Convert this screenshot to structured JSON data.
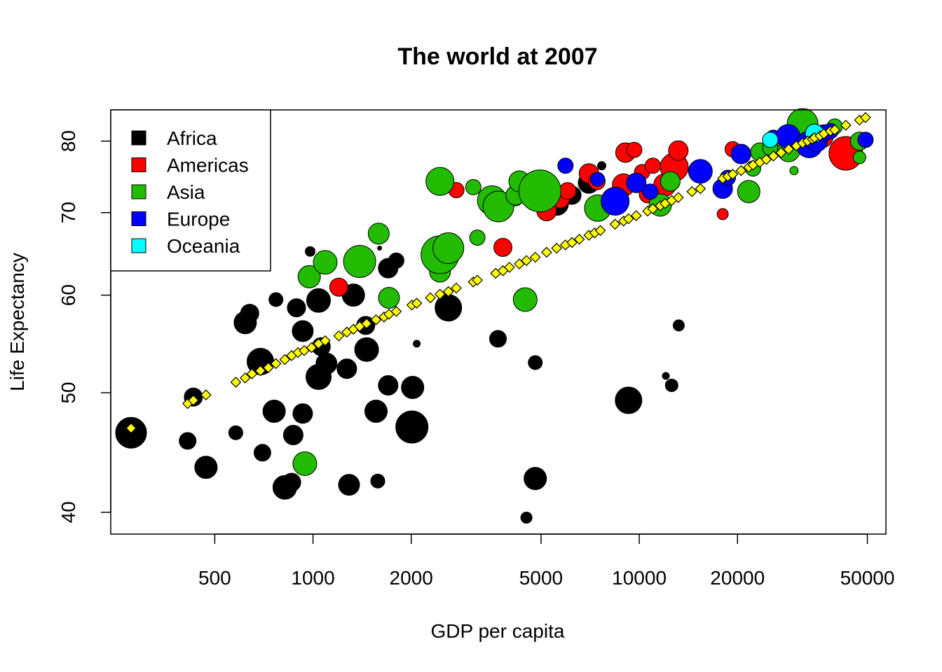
{
  "chart_data": {
    "type": "scatter",
    "title": "The world at 2007",
    "xlabel": "GDP per capita",
    "ylabel": "Life Expectancy",
    "x_scale": "log",
    "y_scale": "log",
    "xlim": [
      240,
      57000
    ],
    "ylim": [
      38.4,
      84.8
    ],
    "x_ticks": [
      500,
      1000,
      2000,
      5000,
      10000,
      20000,
      50000
    ],
    "y_ticks": [
      40,
      50,
      60,
      70,
      80
    ],
    "grid": false,
    "legend": {
      "position": "top-left",
      "entries": [
        {
          "label": "Africa",
          "color": "#000000"
        },
        {
          "label": "Americas",
          "color": "#ff0000"
        },
        {
          "label": "Asia",
          "color": "#22bb00"
        },
        {
          "label": "Europe",
          "color": "#0000ff"
        },
        {
          "label": "Oceania",
          "color": "#00ffff"
        }
      ]
    },
    "series": [
      {
        "name": "Africa",
        "color": "#000000",
        "points": [
          {
            "x": 277,
            "y": 46.4,
            "r": 22
          },
          {
            "x": 413,
            "y": 45.7,
            "r": 12
          },
          {
            "x": 430,
            "y": 49.6,
            "r": 13
          },
          {
            "x": 470,
            "y": 43.5,
            "r": 16
          },
          {
            "x": 580,
            "y": 46.4,
            "r": 10
          },
          {
            "x": 620,
            "y": 57.0,
            "r": 16
          },
          {
            "x": 640,
            "y": 58.0,
            "r": 13
          },
          {
            "x": 690,
            "y": 53.0,
            "r": 19
          },
          {
            "x": 700,
            "y": 44.7,
            "r": 12
          },
          {
            "x": 760,
            "y": 48.3,
            "r": 16
          },
          {
            "x": 770,
            "y": 59.5,
            "r": 10
          },
          {
            "x": 820,
            "y": 41.9,
            "r": 17
          },
          {
            "x": 860,
            "y": 42.3,
            "r": 13
          },
          {
            "x": 870,
            "y": 46.2,
            "r": 14
          },
          {
            "x": 890,
            "y": 58.6,
            "r": 13
          },
          {
            "x": 930,
            "y": 56.1,
            "r": 15
          },
          {
            "x": 930,
            "y": 48.1,
            "r": 14
          },
          {
            "x": 980,
            "y": 65.1,
            "r": 7
          },
          {
            "x": 1040,
            "y": 59.4,
            "r": 17
          },
          {
            "x": 1040,
            "y": 51.5,
            "r": 18
          },
          {
            "x": 1060,
            "y": 54.5,
            "r": 13
          },
          {
            "x": 1100,
            "y": 52.8,
            "r": 15
          },
          {
            "x": 1270,
            "y": 52.3,
            "r": 14
          },
          {
            "x": 1290,
            "y": 42.1,
            "r": 15
          },
          {
            "x": 1330,
            "y": 60.0,
            "r": 16
          },
          {
            "x": 1450,
            "y": 56.7,
            "r": 13
          },
          {
            "x": 1460,
            "y": 54.2,
            "r": 17
          },
          {
            "x": 1580,
            "y": 42.4,
            "r": 10
          },
          {
            "x": 1560,
            "y": 48.3,
            "r": 16
          },
          {
            "x": 1600,
            "y": 65.5,
            "r": 3
          },
          {
            "x": 1700,
            "y": 50.7,
            "r": 14
          },
          {
            "x": 1700,
            "y": 63.1,
            "r": 14
          },
          {
            "x": 1800,
            "y": 64.0,
            "r": 11
          },
          {
            "x": 2020,
            "y": 50.5,
            "r": 16
          },
          {
            "x": 2010,
            "y": 46.9,
            "r": 23
          },
          {
            "x": 2080,
            "y": 54.8,
            "r": 5
          },
          {
            "x": 2600,
            "y": 58.6,
            "r": 19
          },
          {
            "x": 3630,
            "y": 71.0,
            "r": 15
          },
          {
            "x": 3690,
            "y": 55.3,
            "r": 12
          },
          {
            "x": 4510,
            "y": 39.6,
            "r": 8
          },
          {
            "x": 4800,
            "y": 42.6,
            "r": 16
          },
          {
            "x": 4800,
            "y": 52.9,
            "r": 10
          },
          {
            "x": 5580,
            "y": 71.2,
            "r": 17
          },
          {
            "x": 6220,
            "y": 72.3,
            "r": 13
          },
          {
            "x": 7000,
            "y": 74.0,
            "r": 15
          },
          {
            "x": 7670,
            "y": 76.4,
            "r": 6
          },
          {
            "x": 9270,
            "y": 49.3,
            "r": 19
          },
          {
            "x": 12060,
            "y": 51.6,
            "r": 5
          },
          {
            "x": 12570,
            "y": 50.7,
            "r": 9
          },
          {
            "x": 13210,
            "y": 56.7,
            "r": 8
          }
        ]
      },
      {
        "name": "Americas",
        "color": "#ff0000",
        "points": [
          {
            "x": 1200,
            "y": 60.9,
            "r": 13
          },
          {
            "x": 2750,
            "y": 73.0,
            "r": 11
          },
          {
            "x": 3820,
            "y": 65.6,
            "r": 13
          },
          {
            "x": 4170,
            "y": 72.0,
            "r": 12
          },
          {
            "x": 5200,
            "y": 70.2,
            "r": 14
          },
          {
            "x": 5730,
            "y": 71.8,
            "r": 13
          },
          {
            "x": 6030,
            "y": 72.9,
            "r": 12
          },
          {
            "x": 7010,
            "y": 75.3,
            "r": 14
          },
          {
            "x": 7410,
            "y": 74.2,
            "r": 12
          },
          {
            "x": 8950,
            "y": 73.7,
            "r": 16
          },
          {
            "x": 9070,
            "y": 78.3,
            "r": 14
          },
          {
            "x": 9650,
            "y": 78.7,
            "r": 11
          },
          {
            "x": 10200,
            "y": 75.5,
            "r": 11
          },
          {
            "x": 10610,
            "y": 72.4,
            "r": 12
          },
          {
            "x": 11000,
            "y": 76.4,
            "r": 11
          },
          {
            "x": 11980,
            "y": 73.7,
            "r": 16
          },
          {
            "x": 12800,
            "y": 76.2,
            "r": 20
          },
          {
            "x": 13170,
            "y": 78.6,
            "r": 14
          },
          {
            "x": 18010,
            "y": 69.8,
            "r": 8
          },
          {
            "x": 19330,
            "y": 78.8,
            "r": 11
          },
          {
            "x": 36320,
            "y": 80.7,
            "r": 16
          },
          {
            "x": 42950,
            "y": 78.2,
            "r": 24
          }
        ]
      },
      {
        "name": "Asia",
        "color": "#22bb00",
        "points": [
          {
            "x": 944,
            "y": 43.8,
            "r": 17
          },
          {
            "x": 974,
            "y": 62.1,
            "r": 16
          },
          {
            "x": 1090,
            "y": 63.8,
            "r": 17
          },
          {
            "x": 1390,
            "y": 63.9,
            "r": 23
          },
          {
            "x": 1590,
            "y": 67.3,
            "r": 15
          },
          {
            "x": 1710,
            "y": 59.7,
            "r": 15
          },
          {
            "x": 2450,
            "y": 74.2,
            "r": 20
          },
          {
            "x": 2450,
            "y": 62.7,
            "r": 15
          },
          {
            "x": 2450,
            "y": 64.7,
            "r": 27
          },
          {
            "x": 2600,
            "y": 65.5,
            "r": 22
          },
          {
            "x": 3100,
            "y": 73.4,
            "r": 11
          },
          {
            "x": 3190,
            "y": 66.8,
            "r": 11
          },
          {
            "x": 3540,
            "y": 71.6,
            "r": 21
          },
          {
            "x": 3700,
            "y": 70.8,
            "r": 22
          },
          {
            "x": 4180,
            "y": 72.3,
            "r": 14
          },
          {
            "x": 4290,
            "y": 74.2,
            "r": 15
          },
          {
            "x": 4470,
            "y": 59.5,
            "r": 17
          },
          {
            "x": 4960,
            "y": 72.9,
            "r": 30
          },
          {
            "x": 7460,
            "y": 70.6,
            "r": 19
          },
          {
            "x": 11600,
            "y": 71.0,
            "r": 16
          },
          {
            "x": 12450,
            "y": 74.2,
            "r": 14
          },
          {
            "x": 21650,
            "y": 72.8,
            "r": 16
          },
          {
            "x": 22320,
            "y": 76.0,
            "r": 11
          },
          {
            "x": 23400,
            "y": 78.4,
            "r": 13
          },
          {
            "x": 25190,
            "y": 79.0,
            "r": 11
          },
          {
            "x": 28690,
            "y": 78.6,
            "r": 16
          },
          {
            "x": 29800,
            "y": 75.7,
            "r": 6
          },
          {
            "x": 31660,
            "y": 82.6,
            "r": 22
          },
          {
            "x": 39720,
            "y": 82.2,
            "r": 11
          },
          {
            "x": 47310,
            "y": 80.0,
            "r": 13
          },
          {
            "x": 47300,
            "y": 77.6,
            "r": 9
          }
        ]
      },
      {
        "name": "Europe",
        "color": "#0000ff",
        "points": [
          {
            "x": 5940,
            "y": 76.4,
            "r": 11
          },
          {
            "x": 7450,
            "y": 74.5,
            "r": 10
          },
          {
            "x": 8430,
            "y": 71.5,
            "r": 20
          },
          {
            "x": 9790,
            "y": 74.0,
            "r": 14
          },
          {
            "x": 10810,
            "y": 72.8,
            "r": 11
          },
          {
            "x": 15390,
            "y": 75.6,
            "r": 17
          },
          {
            "x": 18010,
            "y": 73.2,
            "r": 14
          },
          {
            "x": 18680,
            "y": 74.7,
            "r": 11
          },
          {
            "x": 20510,
            "y": 78.1,
            "r": 14
          },
          {
            "x": 25770,
            "y": 80.5,
            "r": 11
          },
          {
            "x": 28570,
            "y": 80.7,
            "r": 17
          },
          {
            "x": 33200,
            "y": 79.5,
            "r": 19
          },
          {
            "x": 35000,
            "y": 80.0,
            "r": 15
          },
          {
            "x": 36800,
            "y": 81.2,
            "r": 12
          },
          {
            "x": 38500,
            "y": 81.5,
            "r": 11
          },
          {
            "x": 49360,
            "y": 80.2,
            "r": 11
          }
        ]
      },
      {
        "name": "Oceania",
        "color": "#00ffff",
        "points": [
          {
            "x": 25190,
            "y": 80.2,
            "r": 11
          },
          {
            "x": 34440,
            "y": 81.2,
            "r": 13
          }
        ]
      }
    ],
    "fit": {
      "name": "",
      "color": "#ffff00",
      "marker": "diamond",
      "points": [
        {
          "x": 277,
          "y": 46.8
        },
        {
          "x": 413,
          "y": 49.0
        },
        {
          "x": 430,
          "y": 49.3
        },
        {
          "x": 470,
          "y": 49.8
        },
        {
          "x": 580,
          "y": 51.0
        },
        {
          "x": 620,
          "y": 51.4
        },
        {
          "x": 650,
          "y": 51.8
        },
        {
          "x": 690,
          "y": 52.1
        },
        {
          "x": 730,
          "y": 52.4
        },
        {
          "x": 770,
          "y": 52.8
        },
        {
          "x": 820,
          "y": 53.2
        },
        {
          "x": 860,
          "y": 53.6
        },
        {
          "x": 900,
          "y": 53.9
        },
        {
          "x": 940,
          "y": 54.1
        },
        {
          "x": 990,
          "y": 54.4
        },
        {
          "x": 1040,
          "y": 54.8
        },
        {
          "x": 1090,
          "y": 55.1
        },
        {
          "x": 1200,
          "y": 55.6
        },
        {
          "x": 1270,
          "y": 56.0
        },
        {
          "x": 1330,
          "y": 56.3
        },
        {
          "x": 1390,
          "y": 56.6
        },
        {
          "x": 1460,
          "y": 56.9
        },
        {
          "x": 1560,
          "y": 57.3
        },
        {
          "x": 1650,
          "y": 57.6
        },
        {
          "x": 1710,
          "y": 57.9
        },
        {
          "x": 1800,
          "y": 58.2
        },
        {
          "x": 2010,
          "y": 58.9
        },
        {
          "x": 2080,
          "y": 59.1
        },
        {
          "x": 2290,
          "y": 59.7
        },
        {
          "x": 2450,
          "y": 60.1
        },
        {
          "x": 2600,
          "y": 60.4
        },
        {
          "x": 2750,
          "y": 60.8
        },
        {
          "x": 3100,
          "y": 61.5
        },
        {
          "x": 3190,
          "y": 61.7
        },
        {
          "x": 3630,
          "y": 62.5
        },
        {
          "x": 3820,
          "y": 62.8
        },
        {
          "x": 4000,
          "y": 63.2
        },
        {
          "x": 4290,
          "y": 63.6
        },
        {
          "x": 4510,
          "y": 64.0
        },
        {
          "x": 4800,
          "y": 64.4
        },
        {
          "x": 5200,
          "y": 65.0
        },
        {
          "x": 5580,
          "y": 65.5
        },
        {
          "x": 5940,
          "y": 65.9
        },
        {
          "x": 6220,
          "y": 66.2
        },
        {
          "x": 6550,
          "y": 66.6
        },
        {
          "x": 7010,
          "y": 67.1
        },
        {
          "x": 7300,
          "y": 67.4
        },
        {
          "x": 7600,
          "y": 67.7
        },
        {
          "x": 8430,
          "y": 68.5
        },
        {
          "x": 8950,
          "y": 68.9
        },
        {
          "x": 9270,
          "y": 69.2
        },
        {
          "x": 9790,
          "y": 69.6
        },
        {
          "x": 10610,
          "y": 70.2
        },
        {
          "x": 11000,
          "y": 70.5
        },
        {
          "x": 11600,
          "y": 70.9
        },
        {
          "x": 12000,
          "y": 71.2
        },
        {
          "x": 12570,
          "y": 71.6
        },
        {
          "x": 13170,
          "y": 72.0
        },
        {
          "x": 14500,
          "y": 72.8
        },
        {
          "x": 15390,
          "y": 73.2
        },
        {
          "x": 18010,
          "y": 74.6
        },
        {
          "x": 18680,
          "y": 74.9
        },
        {
          "x": 19330,
          "y": 75.2
        },
        {
          "x": 20510,
          "y": 75.7
        },
        {
          "x": 21650,
          "y": 76.2
        },
        {
          "x": 22320,
          "y": 76.5
        },
        {
          "x": 23400,
          "y": 76.9
        },
        {
          "x": 24500,
          "y": 77.3
        },
        {
          "x": 25770,
          "y": 77.8
        },
        {
          "x": 27200,
          "y": 78.3
        },
        {
          "x": 28690,
          "y": 78.8
        },
        {
          "x": 30300,
          "y": 79.3
        },
        {
          "x": 31660,
          "y": 79.7
        },
        {
          "x": 32800,
          "y": 80.0
        },
        {
          "x": 33900,
          "y": 80.3
        },
        {
          "x": 34440,
          "y": 80.5
        },
        {
          "x": 35800,
          "y": 80.8
        },
        {
          "x": 36800,
          "y": 81.1
        },
        {
          "x": 38500,
          "y": 81.5
        },
        {
          "x": 39720,
          "y": 81.7
        },
        {
          "x": 42950,
          "y": 82.4
        },
        {
          "x": 47310,
          "y": 83.2
        },
        {
          "x": 49360,
          "y": 83.6
        }
      ]
    }
  }
}
